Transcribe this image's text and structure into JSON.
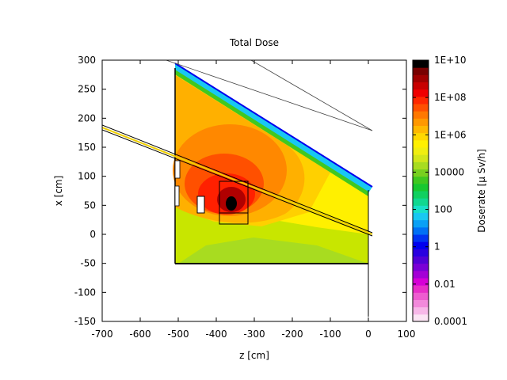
{
  "chart_data": {
    "type": "heatmap",
    "title": "Total Dose",
    "xlabel": "z [cm]",
    "ylabel": "x [cm]",
    "colorbar_label": "Doserate [µ Sv/h]",
    "xlim": [
      -700,
      100
    ],
    "ylim": [
      -150,
      300
    ],
    "xticks": [
      "-700",
      "-600",
      "-500",
      "-400",
      "-300",
      "-200",
      "-100",
      "0",
      "100"
    ],
    "yticks": [
      "300",
      "250",
      "200",
      "150",
      "100",
      "50",
      "0",
      "-50",
      "-100",
      "-150"
    ],
    "colorbar_scale": "log",
    "colorbar_range": [
      0.0001,
      10000000000
    ],
    "colorbar_ticks": [
      "1E+10",
      "1E+08",
      "1E+06",
      "10000",
      "100",
      "1",
      "0.01",
      "0.0001"
    ],
    "colorbar_colors": [
      "#fbe4f4",
      "#f7b8e8",
      "#f28adb",
      "#ee5cd0",
      "#e72ec8",
      "#d600d6",
      "#a400d6",
      "#7a00d6",
      "#5200d6",
      "#2a00e0",
      "#0000ee",
      "#0033f2",
      "#0070f5",
      "#0aa0f5",
      "#18c8f2",
      "#18e0c8",
      "#10d890",
      "#10d060",
      "#18c830",
      "#40c820",
      "#78d020",
      "#a8dc20",
      "#d2e61a",
      "#f0ee10",
      "#fff000",
      "#ffd800",
      "#ffb800",
      "#ff9800",
      "#ff7800",
      "#ff5000",
      "#ff2800",
      "#f00000",
      "#c80000",
      "#a00000",
      "#780000",
      "#000000"
    ],
    "description_regions": [
      {
        "zone": "outer",
        "color": "#c8e600"
      },
      {
        "zone": "mid-yellow",
        "color": "#fff000"
      },
      {
        "zone": "orange",
        "color": "#ffb000"
      },
      {
        "zone": "dark-orange",
        "color": "#ff7800"
      },
      {
        "zone": "red",
        "color": "#ff2000"
      },
      {
        "zone": "dark-red",
        "color": "#a00000"
      },
      {
        "zone": "core",
        "color": "#000000"
      }
    ]
  }
}
